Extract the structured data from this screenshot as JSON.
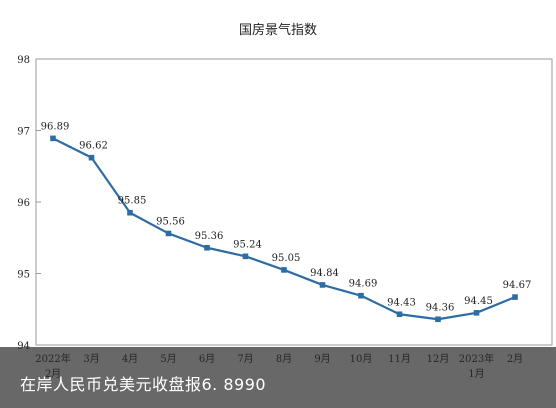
{
  "chart_data": {
    "type": "line",
    "title": "国房景气指数",
    "x": [
      "2022年\n2月",
      "3月",
      "4月",
      "5月",
      "6月",
      "7月",
      "8月",
      "9月",
      "10月",
      "11月",
      "12月",
      "2023年\n1月",
      "2月"
    ],
    "values": [
      96.89,
      96.62,
      95.85,
      95.56,
      95.36,
      95.24,
      95.05,
      94.84,
      94.69,
      94.43,
      94.36,
      94.45,
      94.67
    ],
    "ylim": [
      94,
      98
    ],
    "yticks": [
      94,
      95,
      96,
      97,
      98
    ],
    "grid": false,
    "legend": "none",
    "line_color": "#2e6da4",
    "label_decimals": 2
  },
  "overlay": {
    "caption": "在岸人民币兑美元收盘报6. 8990"
  }
}
